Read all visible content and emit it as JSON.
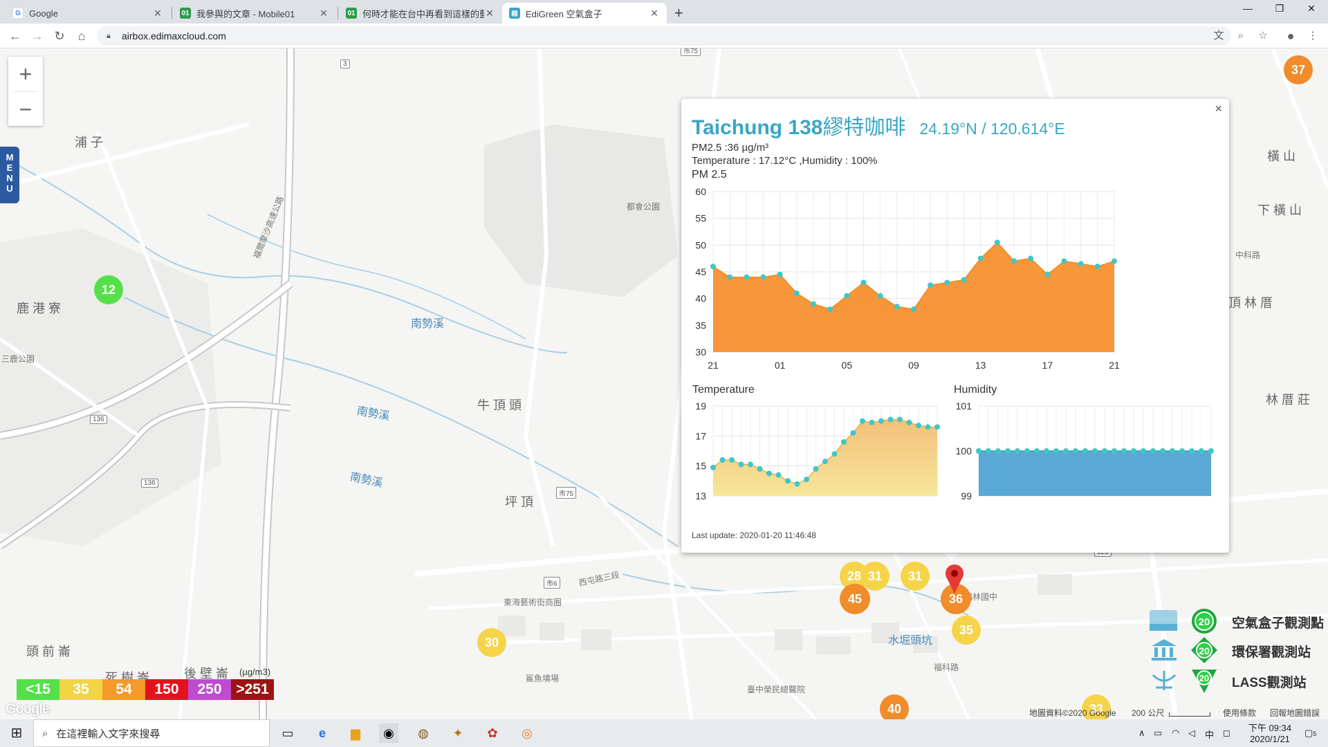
{
  "browser": {
    "tabs": [
      {
        "title": "Google",
        "favicon": "google-g-icon",
        "color": "#4285f4"
      },
      {
        "title": "我參與的文章 - Mobile01",
        "favicon": "mobile01-icon",
        "color": "#2e9b4a"
      },
      {
        "title": "何時才能在台中再看到這樣的藍天",
        "favicon": "mobile01-icon",
        "color": "#2e9b4a"
      },
      {
        "title": "EdiGreen 空氣盒子",
        "favicon": "edigreen-icon",
        "color": "#3aa6c4"
      }
    ],
    "url": "airbox.edimaxcloud.com"
  },
  "map": {
    "zoom_in": "+",
    "zoom_out": "−",
    "menu_label": [
      "M",
      "E",
      "N",
      "U"
    ],
    "labels": [
      {
        "text": "浦 子",
        "kind": "place"
      },
      {
        "text": "鹿 港 寮",
        "kind": "place"
      },
      {
        "text": "三鹿公園",
        "kind": "small"
      },
      {
        "text": "牛 頂 頭",
        "kind": "place"
      },
      {
        "text": "坪 頂",
        "kind": "place"
      },
      {
        "text": "頭 前 崙",
        "kind": "place"
      },
      {
        "text": "後 壁 崙",
        "kind": "place"
      },
      {
        "text": "死 樹 崙",
        "kind": "place"
      },
      {
        "text": "南勢溪",
        "kind": "water"
      },
      {
        "text": "南勢溪",
        "kind": "water"
      },
      {
        "text": "南勢溪",
        "kind": "water"
      },
      {
        "text": "都會公園",
        "kind": "small"
      },
      {
        "text": "東海藝術街商圈",
        "kind": "small"
      },
      {
        "text": "水堀頭坑",
        "kind": "water"
      },
      {
        "text": "福林國中",
        "kind": "small"
      },
      {
        "text": "橫 山",
        "kind": "place"
      },
      {
        "text": "下 橫 山",
        "kind": "place"
      },
      {
        "text": "頂 林 厝",
        "kind": "place"
      },
      {
        "text": "林 厝 莊",
        "kind": "place"
      },
      {
        "text": "福爾摩沙高速公路",
        "kind": "small"
      },
      {
        "text": "西屯路三段",
        "kind": "small"
      },
      {
        "text": "鯊魚墳場",
        "kind": "small"
      },
      {
        "text": "臺中榮民總醫院",
        "kind": "small"
      },
      {
        "text": "福科路",
        "kind": "small"
      },
      {
        "text": "中科路",
        "kind": "small"
      }
    ],
    "markers": [
      {
        "value": "37",
        "level": "orange"
      },
      {
        "value": "12",
        "level": "green"
      },
      {
        "value": "28",
        "level": "yellow"
      },
      {
        "value": "31",
        "level": "yellow"
      },
      {
        "value": "31",
        "level": "yellow"
      },
      {
        "value": "45",
        "level": "orange"
      },
      {
        "value": "36",
        "level": "orange"
      },
      {
        "value": "35",
        "level": "yellow"
      },
      {
        "value": "30",
        "level": "yellow"
      },
      {
        "value": "40",
        "level": "orange"
      },
      {
        "value": "33",
        "level": "yellow"
      }
    ],
    "aqi_legend": [
      {
        "label": "<15",
        "color": "#55e04a"
      },
      {
        "label": "35",
        "color": "#f2d544"
      },
      {
        "label": "54",
        "color": "#f39a2a"
      },
      {
        "label": "150",
        "color": "#e4121f"
      },
      {
        "label": "250",
        "color": "#c04ad0"
      },
      {
        "label": ">251",
        "color": "#9c1414"
      }
    ],
    "aqi_unit": "(µg/m3)",
    "source_legend": [
      {
        "label": "空氣盒子觀測點",
        "badge": "20",
        "icon": "airbox-icon"
      },
      {
        "label": "環保署觀測站",
        "badge": "20",
        "icon": "epa-building-icon"
      },
      {
        "label": "LASS觀測站",
        "badge": "20",
        "icon": "lass-icon"
      }
    ],
    "google_logo": "Google",
    "attribution": "地圖資料©2020 Google",
    "scale": "200 公尺",
    "terms": "使用條款",
    "report": "回報地圖錯誤"
  },
  "popup": {
    "title_bold": "Taichung 138",
    "title_rest": "繆特咖啡",
    "coords": "24.19°N / 120.614°E",
    "pm25_line": "PM2.5 :36 µg/m³",
    "temp_line": "Temperature : 17.12°C ,Humidity : 100%",
    "chart_title": "PM 2.5",
    "temp_title": "Temperature",
    "humidity_title": "Humidity",
    "last_update": "Last update: 2020-01-20 11:46:48",
    "close": "×"
  },
  "chart_data": [
    {
      "type": "area",
      "title": "PM 2.5",
      "x_tick_labels": [
        "21",
        "01",
        "05",
        "09",
        "13",
        "17",
        "21"
      ],
      "y_ticks": [
        30,
        35,
        40,
        45,
        50,
        55,
        60
      ],
      "ylim": [
        30,
        60
      ],
      "grid": true,
      "color": "#f7963a",
      "values": [
        46,
        44,
        44,
        44,
        44.5,
        41,
        39,
        38,
        40.5,
        43,
        40.5,
        38.5,
        38,
        42.5,
        43,
        43.5,
        47.5,
        50.5,
        47,
        47.5,
        44.5,
        47,
        46.5,
        46,
        47
      ]
    },
    {
      "type": "area",
      "title": "Temperature",
      "y_ticks": [
        13,
        15,
        17,
        19
      ],
      "ylim": [
        13,
        19
      ],
      "grid": true,
      "color": "#f2c35a",
      "values": [
        14.9,
        15.4,
        15.4,
        15.1,
        15.1,
        14.8,
        14.5,
        14.4,
        14.0,
        13.8,
        14.1,
        14.8,
        15.3,
        15.8,
        16.6,
        17.2,
        18.0,
        17.9,
        18.0,
        18.1,
        18.1,
        17.9,
        17.7,
        17.6,
        17.6
      ]
    },
    {
      "type": "area",
      "title": "Humidity",
      "y_ticks": [
        99,
        100,
        101
      ],
      "ylim": [
        99,
        101
      ],
      "grid": true,
      "color": "#5aa8d4",
      "values": [
        100,
        100,
        100,
        100,
        100,
        100,
        100,
        100,
        100,
        100,
        100,
        100,
        100,
        100,
        100,
        100,
        100,
        100,
        100,
        100,
        100,
        100,
        100,
        100,
        100
      ]
    }
  ],
  "taskbar": {
    "search_placeholder": "在這裡輸入文字來搜尋",
    "time": "下午 09:34",
    "date": "2020/1/21",
    "ime": "中",
    "notif": "5"
  }
}
